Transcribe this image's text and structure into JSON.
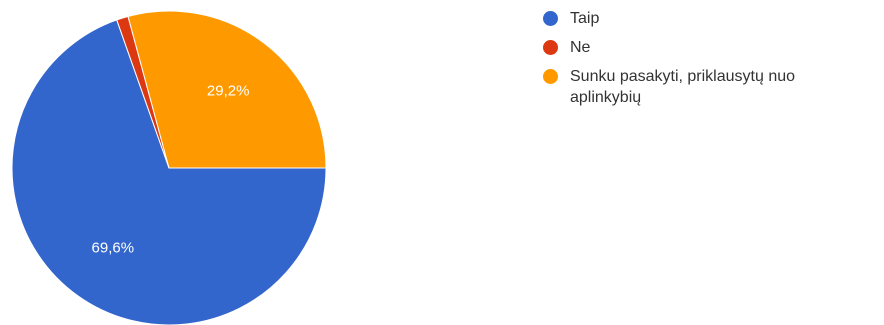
{
  "chart_data": {
    "type": "pie",
    "slices": [
      {
        "label": "Taip",
        "value": 69.6,
        "value_label": "69,6%",
        "color": "#3366cc"
      },
      {
        "label": "Ne",
        "value": 1.2,
        "value_label": "",
        "color": "#dc3912"
      },
      {
        "label": "Sunku pasakyti, priklausytų nuo aplinkybių",
        "value": 29.2,
        "value_label": "29,2%",
        "color": "#ff9900"
      }
    ],
    "legend_position": "right",
    "start_angle": "right (3 o'clock), clockwise"
  }
}
